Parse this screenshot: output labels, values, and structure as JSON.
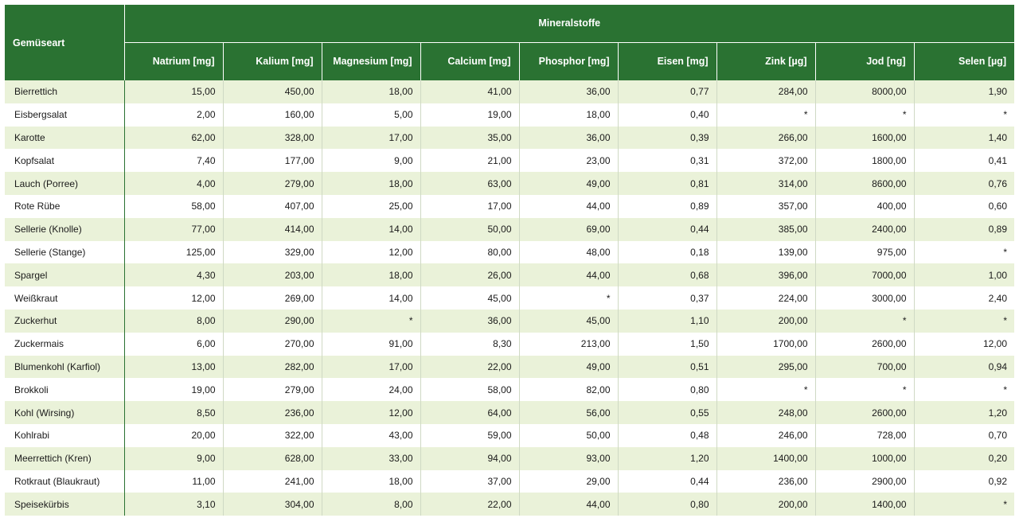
{
  "table": {
    "corner_label": "Gemüseart",
    "group_title": "Mineralstoffe",
    "columns": [
      "Natrium [mg]",
      "Kalium [mg]",
      "Magnesium [mg]",
      "Calcium [mg]",
      "Phosphor [mg]",
      "Eisen [mg]",
      "Zink [µg]",
      "Jod [ng]",
      "Selen [µg]"
    ],
    "header_color": "#2a7232",
    "stripe_color": "#eaf2d9",
    "rows": [
      {
        "name": "Bierrettich",
        "values": [
          "15,00",
          "450,00",
          "18,00",
          "41,00",
          "36,00",
          "0,77",
          "284,00",
          "8000,00",
          "1,90"
        ]
      },
      {
        "name": "Eisbergsalat",
        "values": [
          "2,00",
          "160,00",
          "5,00",
          "19,00",
          "18,00",
          "0,40",
          "*",
          "*",
          "*"
        ]
      },
      {
        "name": "Karotte",
        "values": [
          "62,00",
          "328,00",
          "17,00",
          "35,00",
          "36,00",
          "0,39",
          "266,00",
          "1600,00",
          "1,40"
        ]
      },
      {
        "name": "Kopfsalat",
        "values": [
          "7,40",
          "177,00",
          "9,00",
          "21,00",
          "23,00",
          "0,31",
          "372,00",
          "1800,00",
          "0,41"
        ]
      },
      {
        "name": "Lauch (Porree)",
        "values": [
          "4,00",
          "279,00",
          "18,00",
          "63,00",
          "49,00",
          "0,81",
          "314,00",
          "8600,00",
          "0,76"
        ]
      },
      {
        "name": "Rote Rübe",
        "values": [
          "58,00",
          "407,00",
          "25,00",
          "17,00",
          "44,00",
          "0,89",
          "357,00",
          "400,00",
          "0,60"
        ]
      },
      {
        "name": "Sellerie (Knolle)",
        "values": [
          "77,00",
          "414,00",
          "14,00",
          "50,00",
          "69,00",
          "0,44",
          "385,00",
          "2400,00",
          "0,89"
        ]
      },
      {
        "name": "Sellerie (Stange)",
        "values": [
          "125,00",
          "329,00",
          "12,00",
          "80,00",
          "48,00",
          "0,18",
          "139,00",
          "975,00",
          "*"
        ]
      },
      {
        "name": "Spargel",
        "values": [
          "4,30",
          "203,00",
          "18,00",
          "26,00",
          "44,00",
          "0,68",
          "396,00",
          "7000,00",
          "1,00"
        ]
      },
      {
        "name": "Weißkraut",
        "values": [
          "12,00",
          "269,00",
          "14,00",
          "45,00",
          "*",
          "0,37",
          "224,00",
          "3000,00",
          "2,40"
        ]
      },
      {
        "name": "Zuckerhut",
        "values": [
          "8,00",
          "290,00",
          "*",
          "36,00",
          "45,00",
          "1,10",
          "200,00",
          "*",
          "*"
        ]
      },
      {
        "name": "Zuckermais",
        "values": [
          "6,00",
          "270,00",
          "91,00",
          "8,30",
          "213,00",
          "1,50",
          "1700,00",
          "2600,00",
          "12,00"
        ]
      },
      {
        "name": "Blumenkohl (Karfiol)",
        "values": [
          "13,00",
          "282,00",
          "17,00",
          "22,00",
          "49,00",
          "0,51",
          "295,00",
          "700,00",
          "0,94"
        ]
      },
      {
        "name": "Brokkoli",
        "values": [
          "19,00",
          "279,00",
          "24,00",
          "58,00",
          "82,00",
          "0,80",
          "*",
          "*",
          "*"
        ]
      },
      {
        "name": "Kohl (Wirsing)",
        "values": [
          "8,50",
          "236,00",
          "12,00",
          "64,00",
          "56,00",
          "0,55",
          "248,00",
          "2600,00",
          "1,20"
        ]
      },
      {
        "name": "Kohlrabi",
        "values": [
          "20,00",
          "322,00",
          "43,00",
          "59,00",
          "50,00",
          "0,48",
          "246,00",
          "728,00",
          "0,70"
        ]
      },
      {
        "name": "Meerrettich (Kren)",
        "values": [
          "9,00",
          "628,00",
          "33,00",
          "94,00",
          "93,00",
          "1,20",
          "1400,00",
          "1000,00",
          "0,20"
        ]
      },
      {
        "name": "Rotkraut (Blaukraut)",
        "values": [
          "11,00",
          "241,00",
          "18,00",
          "37,00",
          "29,00",
          "0,44",
          "236,00",
          "2900,00",
          "0,92"
        ]
      },
      {
        "name": "Speisekürbis",
        "values": [
          "3,10",
          "304,00",
          "8,00",
          "22,00",
          "44,00",
          "0,80",
          "200,00",
          "1400,00",
          "*"
        ]
      }
    ]
  }
}
